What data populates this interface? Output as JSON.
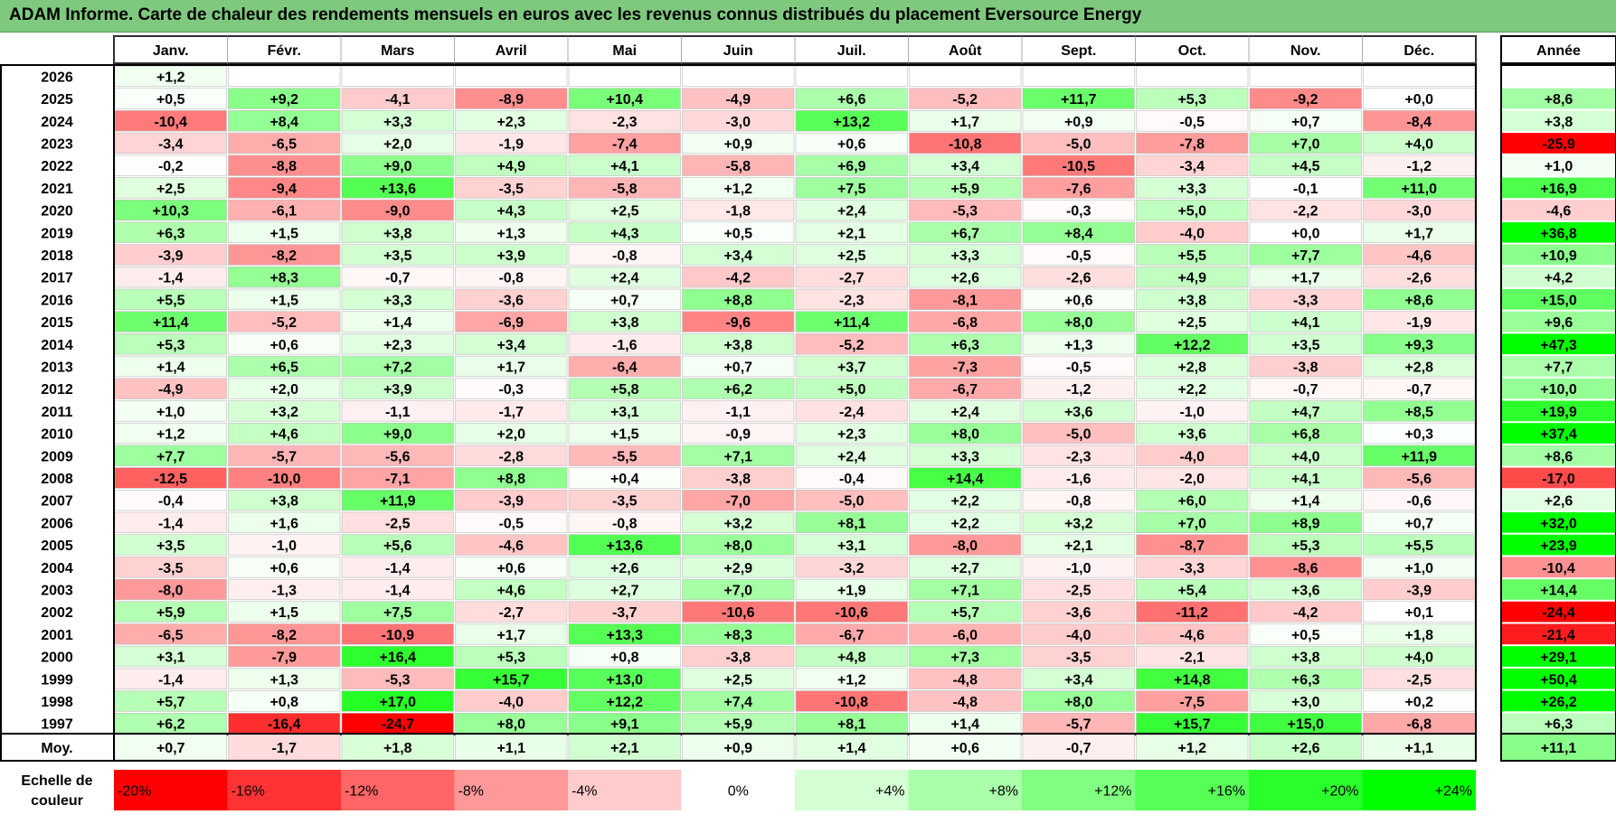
{
  "title": "ADAM Informe. Carte de chaleur des rendements mensuels en euros avec les revenus connus distribués du placement Eversource Energy",
  "chart_data": {
    "type": "heatmap",
    "title": "ADAM Informe. Carte de chaleur des rendements mensuels en euros avec les revenus connus distribués du placement Eversource Energy",
    "columns": [
      "Janv.",
      "Févr.",
      "Mars",
      "Avril",
      "Mai",
      "Juin",
      "Juil.",
      "Août",
      "Sept.",
      "Oct.",
      "Nov.",
      "Déc."
    ],
    "year_column_label": "Année",
    "average_row_label": "Moy.",
    "rows": [
      {
        "year": "2026",
        "values": [
          "+1,2",
          "",
          "",
          "",
          "",
          "",
          "",
          "",
          "",
          "",
          "",
          ""
        ],
        "annual": ""
      },
      {
        "year": "2025",
        "values": [
          "+0,5",
          "+9,2",
          "-4,1",
          "-8,9",
          "+10,4",
          "-4,9",
          "+6,6",
          "-5,2",
          "+11,7",
          "+5,3",
          "-9,2",
          "+0,0"
        ],
        "annual": "+8,6"
      },
      {
        "year": "2024",
        "values": [
          "-10,4",
          "+8,4",
          "+3,3",
          "+2,3",
          "-2,3",
          "-3,0",
          "+13,2",
          "+1,7",
          "+0,9",
          "-0,5",
          "+0,7",
          "-8,4"
        ],
        "annual": "+3,8"
      },
      {
        "year": "2023",
        "values": [
          "-3,4",
          "-6,5",
          "+2,0",
          "-1,9",
          "-7,4",
          "+0,9",
          "+0,6",
          "-10,8",
          "-5,0",
          "-7,8",
          "+7,0",
          "+4,0"
        ],
        "annual": "-25,9"
      },
      {
        "year": "2022",
        "values": [
          "-0,2",
          "-8,8",
          "+9,0",
          "+4,9",
          "+4,1",
          "-5,8",
          "+6,9",
          "+3,4",
          "-10,5",
          "-3,4",
          "+4,5",
          "-1,2"
        ],
        "annual": "+1,0"
      },
      {
        "year": "2021",
        "values": [
          "+2,5",
          "-9,4",
          "+13,6",
          "-3,5",
          "-5,8",
          "+1,2",
          "+7,5",
          "+5,9",
          "-7,6",
          "+3,3",
          "-0,1",
          "+11,0"
        ],
        "annual": "+16,9"
      },
      {
        "year": "2020",
        "values": [
          "+10,3",
          "-6,1",
          "-9,0",
          "+4,3",
          "+2,5",
          "-1,8",
          "+2,4",
          "-5,3",
          "-0,3",
          "+5,0",
          "-2,2",
          "-3,0"
        ],
        "annual": "-4,6"
      },
      {
        "year": "2019",
        "values": [
          "+6,3",
          "+1,5",
          "+3,8",
          "+1,3",
          "+4,3",
          "+0,5",
          "+2,1",
          "+6,7",
          "+8,4",
          "-4,0",
          "+0,0",
          "+1,7"
        ],
        "annual": "+36,8"
      },
      {
        "year": "2018",
        "values": [
          "-3,9",
          "-8,2",
          "+3,5",
          "+3,9",
          "-0,8",
          "+3,4",
          "+2,5",
          "+3,3",
          "-0,5",
          "+5,5",
          "+7,7",
          "-4,6"
        ],
        "annual": "+10,9"
      },
      {
        "year": "2017",
        "values": [
          "-1,4",
          "+8,3",
          "-0,7",
          "-0,8",
          "+2,4",
          "-4,2",
          "-2,7",
          "+2,6",
          "-2,6",
          "+4,9",
          "+1,7",
          "-2,6"
        ],
        "annual": "+4,2"
      },
      {
        "year": "2016",
        "values": [
          "+5,5",
          "+1,5",
          "+3,3",
          "-3,6",
          "+0,7",
          "+8,8",
          "-2,3",
          "-8,1",
          "+0,6",
          "+3,8",
          "-3,3",
          "+8,6"
        ],
        "annual": "+15,0"
      },
      {
        "year": "2015",
        "values": [
          "+11,4",
          "-5,2",
          "+1,4",
          "-6,9",
          "+3,8",
          "-9,6",
          "+11,4",
          "-6,8",
          "+8,0",
          "+2,5",
          "+4,1",
          "-1,9"
        ],
        "annual": "+9,6"
      },
      {
        "year": "2014",
        "values": [
          "+5,3",
          "+0,6",
          "+2,3",
          "+3,4",
          "-1,6",
          "+3,8",
          "-5,2",
          "+6,3",
          "+1,3",
          "+12,2",
          "+3,5",
          "+9,3"
        ],
        "annual": "+47,3"
      },
      {
        "year": "2013",
        "values": [
          "+1,4",
          "+6,5",
          "+7,2",
          "+1,7",
          "-6,4",
          "+0,7",
          "+3,7",
          "-7,3",
          "-0,5",
          "+2,8",
          "-3,8",
          "+2,8"
        ],
        "annual": "+7,7"
      },
      {
        "year": "2012",
        "values": [
          "-4,9",
          "+2,0",
          "+3,9",
          "-0,3",
          "+5,8",
          "+6,2",
          "+5,0",
          "-6,7",
          "-1,2",
          "+2,2",
          "-0,7",
          "-0,7"
        ],
        "annual": "+10,0"
      },
      {
        "year": "2011",
        "values": [
          "+1,0",
          "+3,2",
          "-1,1",
          "-1,7",
          "+3,1",
          "-1,1",
          "-2,4",
          "+2,4",
          "+3,6",
          "-1,0",
          "+4,7",
          "+8,5"
        ],
        "annual": "+19,9"
      },
      {
        "year": "2010",
        "values": [
          "+1,2",
          "+4,6",
          "+9,0",
          "+2,0",
          "+1,5",
          "-0,9",
          "+2,3",
          "+8,0",
          "-5,0",
          "+3,6",
          "+6,8",
          "+0,3"
        ],
        "annual": "+37,4"
      },
      {
        "year": "2009",
        "values": [
          "+7,7",
          "-5,7",
          "-5,6",
          "-2,8",
          "-5,5",
          "+7,1",
          "+2,4",
          "+3,3",
          "-2,3",
          "-4,0",
          "+4,0",
          "+11,9"
        ],
        "annual": "+8,6"
      },
      {
        "year": "2008",
        "values": [
          "-12,5",
          "-10,0",
          "-7,1",
          "+8,8",
          "+0,4",
          "-3,8",
          "-0,4",
          "+14,4",
          "-1,6",
          "-2,0",
          "+4,1",
          "-5,6"
        ],
        "annual": "-17,0"
      },
      {
        "year": "2007",
        "values": [
          "-0,4",
          "+3,8",
          "+11,9",
          "-3,9",
          "-3,5",
          "-7,0",
          "-5,0",
          "+2,2",
          "-0,8",
          "+6,0",
          "+1,4",
          "-0,6"
        ],
        "annual": "+2,6"
      },
      {
        "year": "2006",
        "values": [
          "-1,4",
          "+1,6",
          "-2,5",
          "-0,5",
          "-0,8",
          "+3,2",
          "+8,1",
          "+2,2",
          "+3,2",
          "+7,0",
          "+8,9",
          "+0,7"
        ],
        "annual": "+32,0"
      },
      {
        "year": "2005",
        "values": [
          "+3,5",
          "-1,0",
          "+5,6",
          "-4,6",
          "+13,6",
          "+8,0",
          "+3,1",
          "-8,0",
          "+2,1",
          "-8,7",
          "+5,3",
          "+5,5"
        ],
        "annual": "+23,9"
      },
      {
        "year": "2004",
        "values": [
          "-3,5",
          "+0,6",
          "-1,4",
          "+0,6",
          "+2,6",
          "+2,9",
          "-3,2",
          "+2,7",
          "-1,0",
          "-3,3",
          "-8,6",
          "+1,0"
        ],
        "annual": "-10,4"
      },
      {
        "year": "2003",
        "values": [
          "-8,0",
          "-1,3",
          "-1,4",
          "+4,6",
          "+2,7",
          "+7,0",
          "+1,9",
          "+7,1",
          "-2,5",
          "+5,4",
          "+3,6",
          "-3,9"
        ],
        "annual": "+14,4"
      },
      {
        "year": "2002",
        "values": [
          "+5,9",
          "+1,5",
          "+7,5",
          "-2,7",
          "-3,7",
          "-10,6",
          "-10,6",
          "+5,7",
          "-3,6",
          "-11,2",
          "-4,2",
          "+0,1"
        ],
        "annual": "-24,4"
      },
      {
        "year": "2001",
        "values": [
          "-6,5",
          "-8,2",
          "-10,9",
          "+1,7",
          "+13,3",
          "+8,3",
          "-6,7",
          "-6,0",
          "-4,0",
          "-4,6",
          "+0,5",
          "+1,8"
        ],
        "annual": "-21,4"
      },
      {
        "year": "2000",
        "values": [
          "+3,1",
          "-7,9",
          "+16,4",
          "+5,3",
          "+0,8",
          "-3,8",
          "+4,8",
          "+7,3",
          "-3,5",
          "-2,1",
          "+3,8",
          "+4,0"
        ],
        "annual": "+29,1"
      },
      {
        "year": "1999",
        "values": [
          "-1,4",
          "+1,3",
          "-5,3",
          "+15,7",
          "+13,0",
          "+2,5",
          "+1,2",
          "-4,8",
          "+3,4",
          "+14,8",
          "+6,3",
          "-2,5"
        ],
        "annual": "+50,4"
      },
      {
        "year": "1998",
        "values": [
          "+5,7",
          "+0,8",
          "+17,0",
          "-4,0",
          "+12,2",
          "+7,4",
          "-10,8",
          "-4,8",
          "+8,0",
          "-7,5",
          "+3,0",
          "+0,2"
        ],
        "annual": "+26,2"
      },
      {
        "year": "1997",
        "values": [
          "+6,2",
          "-16,4",
          "-24,7",
          "+8,0",
          "+9,1",
          "+5,9",
          "+8,1",
          "+1,4",
          "-5,7",
          "+15,7",
          "+15,0",
          "-6,8"
        ],
        "annual": "+6,3"
      }
    ],
    "averages": {
      "values": [
        "+0,7",
        "-1,7",
        "+1,8",
        "+1,1",
        "+2,1",
        "+0,9",
        "+1,4",
        "+0,6",
        "-0,7",
        "+1,2",
        "+2,6",
        "+1,1"
      ],
      "annual": "+11,1"
    },
    "legend": {
      "title_lines": [
        "Echelle de",
        "couleur"
      ],
      "labels": [
        "-20%",
        "-16%",
        "-12%",
        "-8%",
        "-4%",
        "0%",
        "+4%",
        "+8%",
        "+12%",
        "+16%",
        "+20%",
        "+24%"
      ],
      "values": [
        -20,
        -16,
        -12,
        -8,
        -4,
        0,
        4,
        8,
        12,
        16,
        20,
        24
      ]
    },
    "colors": {
      "negative": "#ff0000",
      "neutral": "#ffffff",
      "positive": "#00ff00",
      "title_bar": "#7fc97f"
    }
  }
}
